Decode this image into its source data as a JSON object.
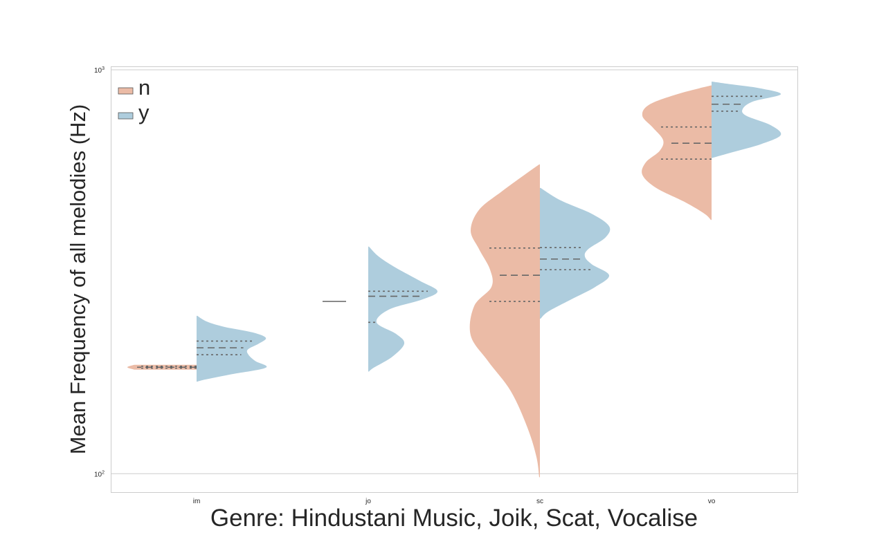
{
  "chart_data": {
    "type": "violin",
    "xlabel": "Genre: Hindustani Music, Joik, Scat, Vocalise",
    "ylabel": "Mean Frequency of all melodies (Hz)",
    "yscale": "log",
    "ylim": [
      90,
      1020
    ],
    "yticks": [
      {
        "value": 100,
        "base": "10",
        "exp": "2"
      },
      {
        "value": 1000,
        "base": "10",
        "exp": "3"
      }
    ],
    "grid": true,
    "legend_position": "top-left",
    "categories": [
      "im",
      "jo",
      "sc",
      "vo"
    ],
    "series": [
      {
        "name": "n",
        "color": "#ebbba6"
      },
      {
        "name": "y",
        "color": "#aecddd"
      }
    ],
    "violins": [
      {
        "category": "im",
        "series": "n",
        "min": 181,
        "max": 186,
        "q1": 182.5,
        "median": 183.5,
        "q3": 184.5,
        "profile": [
          [
            181,
            0.9
          ],
          [
            183.5,
            1.0
          ],
          [
            186,
            0.9
          ]
        ]
      },
      {
        "category": "im",
        "series": "y",
        "min": 169,
        "max": 246,
        "q1": 197,
        "median": 205,
        "q3": 213,
        "profile": [
          [
            169,
            0.01
          ],
          [
            171,
            0.12
          ],
          [
            176,
            0.48
          ],
          [
            183,
            1.0
          ],
          [
            190,
            0.85
          ],
          [
            197,
            0.75
          ],
          [
            203,
            0.74
          ],
          [
            210,
            0.9
          ],
          [
            217,
            1.0
          ],
          [
            224,
            0.8
          ],
          [
            231,
            0.4
          ],
          [
            238,
            0.15
          ],
          [
            246,
            0.01
          ]
        ]
      },
      {
        "category": "jo",
        "series": "n",
        "min": 267,
        "max": 267,
        "q1": 267,
        "median": 267,
        "q3": 267,
        "profile": []
      },
      {
        "category": "jo",
        "series": "y",
        "min": 179,
        "max": 365,
        "q1": 237,
        "median": 275,
        "q3": 283,
        "profile": [
          [
            179,
            0.01
          ],
          [
            183,
            0.08
          ],
          [
            195,
            0.35
          ],
          [
            210,
            0.52
          ],
          [
            222,
            0.4
          ],
          [
            237,
            0.12
          ],
          [
            255,
            0.3
          ],
          [
            270,
            0.78
          ],
          [
            283,
            1.0
          ],
          [
            300,
            0.75
          ],
          [
            325,
            0.38
          ],
          [
            345,
            0.15
          ],
          [
            365,
            0.01
          ]
        ]
      },
      {
        "category": "sc",
        "series": "n",
        "min": 98,
        "max": 583,
        "q1": 267,
        "median": 310,
        "q3": 362,
        "profile": [
          [
            98,
            0.01
          ],
          [
            110,
            0.05
          ],
          [
            130,
            0.18
          ],
          [
            160,
            0.42
          ],
          [
            190,
            0.75
          ],
          [
            220,
            1.0
          ],
          [
            260,
            0.95
          ],
          [
            290,
            0.7
          ],
          [
            320,
            0.72
          ],
          [
            360,
            0.88
          ],
          [
            400,
            1.0
          ],
          [
            450,
            0.88
          ],
          [
            500,
            0.55
          ],
          [
            550,
            0.22
          ],
          [
            583,
            0.01
          ]
        ]
      },
      {
        "category": "sc",
        "series": "y",
        "min": 242,
        "max": 510,
        "q1": 320,
        "median": 340,
        "q3": 363,
        "profile": [
          [
            242,
            0.01
          ],
          [
            252,
            0.12
          ],
          [
            270,
            0.45
          ],
          [
            290,
            0.8
          ],
          [
            310,
            1.0
          ],
          [
            330,
            0.75
          ],
          [
            345,
            0.65
          ],
          [
            360,
            0.7
          ],
          [
            385,
            0.95
          ],
          [
            410,
            1.0
          ],
          [
            440,
            0.75
          ],
          [
            475,
            0.3
          ],
          [
            510,
            0.01
          ]
        ]
      },
      {
        "category": "vo",
        "series": "n",
        "min": 425,
        "max": 915,
        "q1": 601,
        "median": 658,
        "q3": 722,
        "profile": [
          [
            425,
            0.01
          ],
          [
            440,
            0.1
          ],
          [
            470,
            0.38
          ],
          [
            510,
            0.8
          ],
          [
            550,
            1.0
          ],
          [
            590,
            0.95
          ],
          [
            630,
            0.75
          ],
          [
            670,
            0.7
          ],
          [
            720,
            0.85
          ],
          [
            770,
            1.0
          ],
          [
            820,
            0.9
          ],
          [
            870,
            0.5
          ],
          [
            915,
            0.01
          ]
        ]
      },
      {
        "category": "vo",
        "series": "y",
        "min": 605,
        "max": 935,
        "q1": 790,
        "median": 822,
        "q3": 860,
        "profile": [
          [
            605,
            0.01
          ],
          [
            625,
            0.3
          ],
          [
            655,
            0.72
          ],
          [
            690,
            1.0
          ],
          [
            730,
            0.85
          ],
          [
            770,
            0.5
          ],
          [
            800,
            0.45
          ],
          [
            835,
            0.6
          ],
          [
            870,
            1.0
          ],
          [
            900,
            0.7
          ],
          [
            920,
            0.3
          ],
          [
            935,
            0.01
          ]
        ]
      }
    ]
  }
}
